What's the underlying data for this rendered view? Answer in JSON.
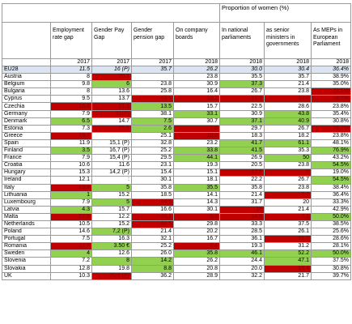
{
  "top_header": "Proportion of women (%)",
  "headers": [
    "",
    "Employment rate gap",
    "Gender Pay Gap",
    "Gender pension gap",
    "On company boards",
    "In national parliaments",
    "as senior ministers in governments",
    "As MEPs in European Parliament"
  ],
  "years": [
    "",
    "2017",
    "2017",
    "2017",
    "2018",
    "2018",
    "2018",
    "2018"
  ],
  "rows": [
    {
      "c": "EU28",
      "v": [
        "11.5",
        "16 (P)",
        "35.7",
        "26.2",
        "30.0",
        "30.4",
        "36.4%"
      ],
      "h": [
        "",
        "",
        "",
        "",
        "",
        "",
        ""
      ]
    },
    {
      "c": "Austria",
      "v": [
        "8",
        "20.1",
        "",
        "23.8",
        "35.5",
        "35.7",
        "38.9%"
      ],
      "h": [
        "",
        "r",
        "",
        "",
        "",
        "",
        ""
      ]
    },
    {
      "c": "Belgium",
      "v": [
        "9.8",
        "6",
        "23.8",
        "30.9",
        "37.3",
        "21.4",
        "35.0%"
      ],
      "h": [
        "",
        "g",
        "",
        "",
        "g",
        "",
        ""
      ]
    },
    {
      "c": "Bulgaria",
      "v": [
        "8",
        "13.6",
        "25.8",
        "16.4",
        "26.7",
        "23.8",
        "23.5%"
      ],
      "h": [
        "",
        "",
        "",
        "",
        "",
        "",
        "r"
      ]
    },
    {
      "c": "Cyprus",
      "v": [
        "9.5",
        "13.7",
        "43.6",
        "10.2",
        "17.9",
        "10.0",
        "16.7%"
      ],
      "h": [
        "",
        "",
        "r",
        "r",
        "r",
        "r",
        "r"
      ]
    },
    {
      "c": "Czechia",
      "v": [
        "15.8",
        "21.1",
        "13.5",
        "15.7",
        "22.5",
        "28.6",
        "23.8%"
      ],
      "h": [
        "r",
        "r",
        "g",
        "",
        "",
        "",
        ""
      ]
    },
    {
      "c": "Germany",
      "v": [
        "7.9",
        "21(P)",
        "38.1",
        "33.1",
        "30.9",
        "43.8",
        "35.4%"
      ],
      "h": [
        "",
        "r",
        "",
        "g",
        "",
        "g",
        ""
      ]
    },
    {
      "c": "Denmark",
      "v": [
        "6.5",
        "14.7",
        "7.5",
        "30.7",
        "37.1",
        "40.9",
        "30.8%"
      ],
      "h": [
        "g",
        "",
        "g",
        "",
        "g",
        "g",
        ""
      ]
    },
    {
      "c": "Estonia",
      "v": [
        "7.3",
        "25.6",
        "2.6",
        "7.6",
        "29.7",
        "26.7",
        "16.7%"
      ],
      "h": [
        "",
        "r",
        "g",
        "r",
        "",
        "",
        "r"
      ]
    },
    {
      "c": "Greece",
      "v": [
        "19.7",
        "",
        "25.1",
        "10.8",
        "18.3",
        "18.2",
        "23.8%"
      ],
      "h": [
        "r",
        "",
        "",
        "r",
        "",
        "",
        ""
      ]
    },
    {
      "c": "Spain",
      "v": [
        "11.9",
        "15,1 (P)",
        "32.8",
        "23.2",
        "41.7",
        "61.1",
        "48.1%"
      ],
      "h": [
        "",
        "",
        "",
        "",
        "g",
        "g",
        ""
      ]
    },
    {
      "c": "Finland",
      "v": [
        "3.5",
        "16,7 (P)",
        "25.2",
        "33.8",
        "41.5",
        "35.3",
        "76.9%"
      ],
      "h": [
        "g",
        "",
        "",
        "g",
        "g",
        "",
        "g"
      ]
    },
    {
      "c": "France",
      "v": [
        "7.9",
        "15,4 (P)",
        "29.5",
        "44.1",
        "26.9",
        "50",
        "43.2%"
      ],
      "h": [
        "",
        "",
        "",
        "g",
        "",
        "g",
        ""
      ]
    },
    {
      "c": "Croatia",
      "v": [
        "10.6",
        "11.6",
        "23.1",
        "19.3",
        "20.5",
        "23.8",
        "54.5%"
      ],
      "h": [
        "",
        "",
        "",
        "",
        "",
        "",
        "g"
      ]
    },
    {
      "c": "Hungary",
      "v": [
        "15.3",
        "14,2 (P)",
        "15.4",
        "15.1",
        "12.6",
        "0",
        "19.0%"
      ],
      "h": [
        "",
        "",
        "",
        "",
        "r",
        "r",
        ""
      ]
    },
    {
      "c": "Ireland",
      "v": [
        "12.1",
        ":",
        "30.1",
        "18.1",
        "22.2",
        "26.7",
        "54.5%"
      ],
      "h": [
        "",
        "",
        "",
        "",
        "",
        "",
        "g"
      ]
    },
    {
      "c": "Italy",
      "v": [
        "19.8",
        "5",
        "35.8",
        "35.5",
        "35.8",
        "23.8",
        "38.4%"
      ],
      "h": [
        "r",
        "g",
        "",
        "g",
        "",
        "",
        ""
      ]
    },
    {
      "c": "Lithuania",
      "v": [
        "1",
        "15.2",
        "18.5",
        "14.1",
        "21.4",
        "7.7",
        "36.4%"
      ],
      "h": [
        "g",
        "",
        "",
        "",
        "",
        "r",
        ""
      ]
    },
    {
      "c": "Luxembourg",
      "v": [
        "7.9",
        "5",
        "44.5",
        "14.3",
        "31.7",
        "20",
        "33.3%"
      ],
      "h": [
        "",
        "g",
        "r",
        "",
        "",
        "",
        ""
      ]
    },
    {
      "c": "Latvia",
      "v": [
        "4.3",
        "15.7",
        "16.6",
        "30.1",
        "18",
        "21.4",
        "42.9%"
      ],
      "h": [
        "g",
        "",
        "",
        "",
        "r",
        "",
        ""
      ]
    },
    {
      "c": "Malta",
      "v": [
        "27.5",
        "12.2",
        "44.1",
        "8.3",
        "14.9",
        "7.1",
        "50.0%"
      ],
      "h": [
        "r",
        "",
        "r",
        "r",
        "r",
        "r",
        "g"
      ]
    },
    {
      "c": "Netherlands",
      "v": [
        "10.5",
        "15.2",
        "44.5",
        "29.8",
        "33.3",
        "37.5",
        "38.5%"
      ],
      "h": [
        "",
        "",
        "r",
        "",
        "",
        "",
        ""
      ]
    },
    {
      "c": "Poland",
      "v": [
        "14.6",
        "7,2 (P)",
        "21.4",
        "20.2",
        "28.5",
        "26.1",
        "25.6%"
      ],
      "h": [
        "",
        "g",
        "",
        "",
        "",
        "",
        ""
      ]
    },
    {
      "c": "Portugal",
      "v": [
        "7.5",
        "16.3",
        "32.1",
        "16.7",
        "36.1",
        "16.7",
        "28.6%"
      ],
      "h": [
        "",
        "",
        "",
        "",
        "",
        "r",
        ""
      ]
    },
    {
      "c": "Romania",
      "v": [
        "17.7",
        "3.50 €",
        "25.2",
        "7.4",
        "19.3",
        "31.2",
        "28.1%"
      ],
      "h": [
        "r",
        "g",
        "",
        "r",
        "",
        "",
        ""
      ]
    },
    {
      "c": "Sweden",
      "v": [
        "4",
        "12.6",
        "26.0",
        "35.8",
        "46.1",
        "52.2",
        "50.0%"
      ],
      "h": [
        "g",
        "",
        "",
        "g",
        "g",
        "g",
        "g"
      ]
    },
    {
      "c": "Slovenia",
      "v": [
        "7.2",
        "8",
        "14.2",
        "26.2",
        "24.4",
        "47.1",
        "37.5%"
      ],
      "h": [
        "",
        "g",
        "g",
        "",
        "",
        "g",
        ""
      ]
    },
    {
      "c": "Slovakia",
      "v": [
        "12.8",
        "19.8",
        "8.8",
        "20.8",
        "20.0",
        "15.4",
        "30.8%"
      ],
      "h": [
        "",
        "",
        "g",
        "",
        "",
        "r",
        ""
      ]
    },
    {
      "c": "UK",
      "v": [
        "10.3",
        "20,8 (P)",
        "36.2",
        "28.9",
        "32.2",
        "21.7",
        "39.7%"
      ],
      "h": [
        "",
        "r",
        "",
        "",
        "",
        "",
        ""
      ]
    }
  ],
  "colors": {
    "good": "#92d050",
    "bad": "#c00000",
    "eu_row": "#dbe5f1"
  }
}
